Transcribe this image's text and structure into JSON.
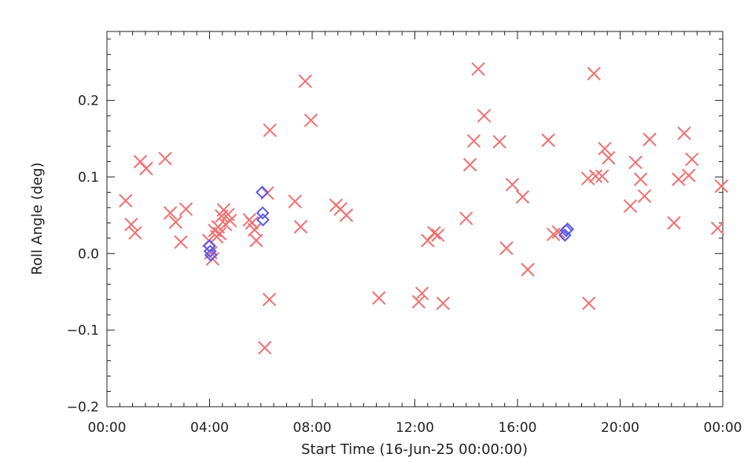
{
  "chart_data": {
    "type": "scatter",
    "title": "",
    "xlabel": "Start Time (16-Jun-25 00:00:00)",
    "ylabel": "Roll Angle (deg)",
    "xlim": [
      0,
      24
    ],
    "ylim": [
      -0.2,
      0.29
    ],
    "grid": false,
    "x_ticks": [
      {
        "value": 0,
        "label": "00:00"
      },
      {
        "value": 4,
        "label": "04:00"
      },
      {
        "value": 8,
        "label": "08:00"
      },
      {
        "value": 12,
        "label": "12:00"
      },
      {
        "value": 16,
        "label": "16:00"
      },
      {
        "value": 20,
        "label": "20:00"
      },
      {
        "value": 24,
        "label": "00:00"
      }
    ],
    "y_ticks": [
      {
        "value": -0.2,
        "label": "−0.2"
      },
      {
        "value": -0.1,
        "label": "−0.1"
      },
      {
        "value": 0.0,
        "label": "0.0"
      },
      {
        "value": 0.1,
        "label": "0.1"
      },
      {
        "value": 0.2,
        "label": "0.2"
      }
    ],
    "series": [
      {
        "marker": "x",
        "color": "#f07070",
        "points": [
          [
            0.73,
            0.069
          ],
          [
            0.95,
            0.038
          ],
          [
            1.1,
            0.027
          ],
          [
            1.3,
            0.12
          ],
          [
            1.53,
            0.111
          ],
          [
            2.27,
            0.124
          ],
          [
            2.47,
            0.053
          ],
          [
            2.68,
            0.041
          ],
          [
            2.88,
            0.015
          ],
          [
            3.08,
            0.058
          ],
          [
            3.97,
            0.017
          ],
          [
            4.05,
            0.001
          ],
          [
            4.12,
            -0.007
          ],
          [
            4.2,
            0.03
          ],
          [
            4.28,
            0.022
          ],
          [
            4.33,
            0.035
          ],
          [
            4.4,
            0.026
          ],
          [
            4.47,
            0.049
          ],
          [
            4.55,
            0.057
          ],
          [
            4.62,
            0.038
          ],
          [
            4.72,
            0.051
          ],
          [
            4.8,
            0.043
          ],
          [
            5.55,
            0.044
          ],
          [
            5.65,
            0.04
          ],
          [
            5.75,
            0.031
          ],
          [
            5.82,
            0.017
          ],
          [
            6.25,
            0.079
          ],
          [
            6.15,
            -0.123
          ],
          [
            6.33,
            -0.06
          ],
          [
            6.35,
            0.161
          ],
          [
            7.33,
            0.068
          ],
          [
            7.55,
            0.035
          ],
          [
            7.73,
            0.225
          ],
          [
            7.95,
            0.174
          ],
          [
            8.93,
            0.063
          ],
          [
            9.1,
            0.058
          ],
          [
            9.33,
            0.05
          ],
          [
            10.6,
            -0.058
          ],
          [
            12.15,
            -0.063
          ],
          [
            12.28,
            -0.052
          ],
          [
            12.5,
            0.017
          ],
          [
            12.75,
            0.027
          ],
          [
            12.9,
            0.024
          ],
          [
            13.1,
            -0.065
          ],
          [
            14.0,
            0.046
          ],
          [
            14.15,
            0.116
          ],
          [
            14.3,
            0.147
          ],
          [
            14.47,
            0.241
          ],
          [
            14.7,
            0.18
          ],
          [
            15.3,
            0.146
          ],
          [
            15.57,
            0.007
          ],
          [
            15.8,
            0.09
          ],
          [
            16.2,
            0.074
          ],
          [
            16.4,
            -0.021
          ],
          [
            17.2,
            0.148
          ],
          [
            17.4,
            0.025
          ],
          [
            17.6,
            0.028
          ],
          [
            18.75,
            0.098
          ],
          [
            18.78,
            -0.065
          ],
          [
            18.98,
            0.235
          ],
          [
            19.05,
            0.101
          ],
          [
            19.3,
            0.101
          ],
          [
            19.4,
            0.137
          ],
          [
            19.55,
            0.125
          ],
          [
            20.4,
            0.062
          ],
          [
            20.6,
            0.119
          ],
          [
            20.8,
            0.097
          ],
          [
            20.95,
            0.075
          ],
          [
            21.15,
            0.149
          ],
          [
            22.1,
            0.04
          ],
          [
            22.28,
            0.097
          ],
          [
            22.5,
            0.157
          ],
          [
            22.68,
            0.102
          ],
          [
            22.8,
            0.123
          ],
          [
            23.8,
            0.033
          ],
          [
            23.95,
            0.088
          ]
        ]
      },
      {
        "marker": "diamond",
        "color": "#5a5ae8",
        "points": [
          [
            4.0,
            0.01
          ],
          [
            4.02,
            0.003
          ],
          [
            4.05,
            -0.002
          ],
          [
            6.05,
            0.08
          ],
          [
            6.07,
            0.053
          ],
          [
            6.08,
            0.044
          ],
          [
            17.85,
            0.024
          ],
          [
            17.9,
            0.03
          ],
          [
            17.95,
            0.032
          ]
        ]
      }
    ]
  }
}
